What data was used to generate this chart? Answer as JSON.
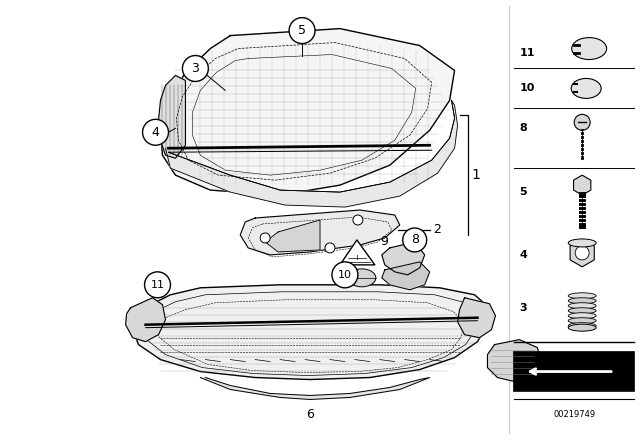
{
  "bg_color": "#ffffff",
  "diagram_number": "00219749",
  "fig_width": 6.4,
  "fig_height": 4.48,
  "dpi": 100
}
